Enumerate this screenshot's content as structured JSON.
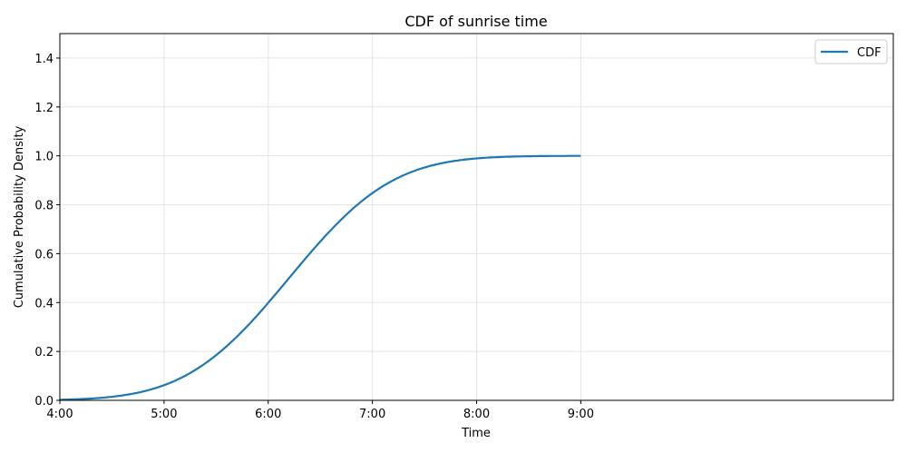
{
  "chart_data": {
    "type": "line",
    "title": "CDF of sunrise time",
    "xlabel": "Time",
    "ylabel": "Cumulative Probability Density",
    "xlim": [
      "4:00",
      "12:00"
    ],
    "ylim": [
      0,
      1.5
    ],
    "grid": true,
    "legend_position": "upper right",
    "x_ticks": [
      "4:00",
      "5:00",
      "6:00",
      "7:00",
      "8:00",
      "9:00"
    ],
    "y_ticks": [
      "0.0",
      "0.2",
      "0.4",
      "0.6",
      "0.8",
      "1.0",
      "1.2",
      "1.4"
    ],
    "series": [
      {
        "name": "CDF",
        "color": "#1f77b4",
        "x": [
          "4:00",
          "4:15",
          "4:30",
          "4:45",
          "5:00",
          "5:15",
          "5:30",
          "5:45",
          "6:00",
          "6:15",
          "6:30",
          "6:45",
          "7:00",
          "7:15",
          "7:30",
          "7:45",
          "8:00",
          "8:15",
          "8:30",
          "8:45",
          "9:00"
        ],
        "values": [
          0.002,
          0.004,
          0.011,
          0.028,
          0.062,
          0.115,
          0.19,
          0.29,
          0.4,
          0.52,
          0.63,
          0.74,
          0.83,
          0.9,
          0.945,
          0.973,
          0.99,
          0.996,
          0.999,
          1.0,
          1.0
        ]
      }
    ]
  },
  "legend": {
    "label": "CDF"
  }
}
